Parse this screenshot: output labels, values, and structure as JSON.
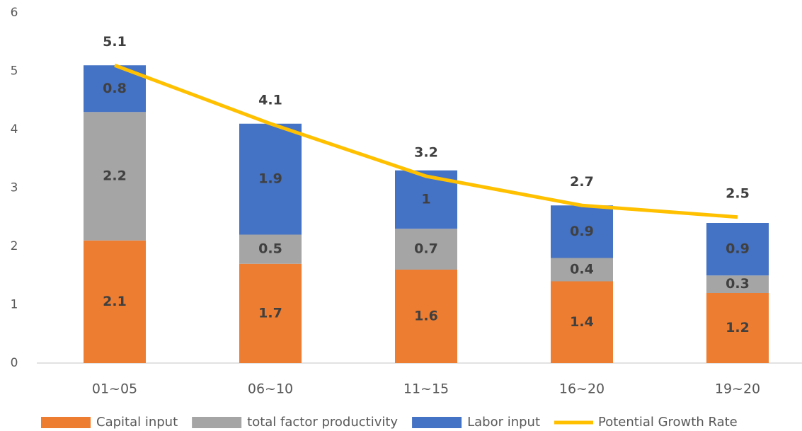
{
  "chart_data": {
    "type": "bar",
    "stacked": true,
    "categories": [
      "01~05",
      "06~10",
      "11~15",
      "16~20",
      "19~20"
    ],
    "series": [
      {
        "name": "Capital input",
        "type": "bar",
        "color": "#ED7D31",
        "values": [
          2.1,
          1.7,
          1.6,
          1.4,
          1.2
        ]
      },
      {
        "name": "total factor productivity",
        "type": "bar",
        "color": "#A5A5A5",
        "values": [
          2.2,
          0.5,
          0.7,
          0.4,
          0.3
        ]
      },
      {
        "name": "Labor input",
        "type": "bar",
        "color": "#4472C4",
        "values": [
          0.8,
          1.9,
          1,
          0.9,
          0.9
        ]
      },
      {
        "name": "Potential Growth Rate",
        "type": "line",
        "color": "#FFC000",
        "values": [
          5.1,
          4.1,
          3.2,
          2.7,
          2.5
        ]
      }
    ],
    "ylim": [
      0,
      6
    ],
    "yticks": [
      0,
      1,
      2,
      3,
      4,
      5,
      6
    ],
    "grid": false,
    "legend": "bottom"
  }
}
